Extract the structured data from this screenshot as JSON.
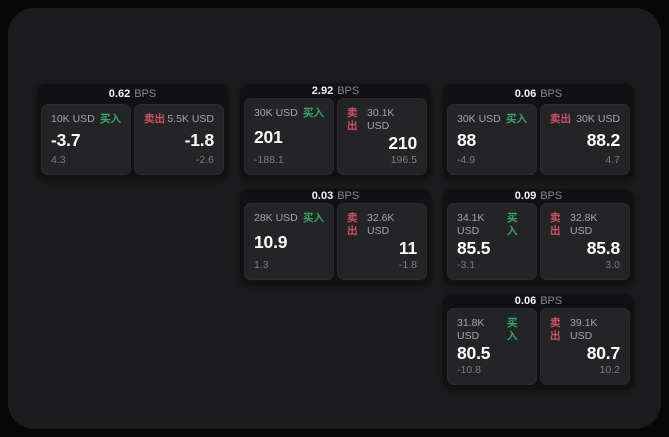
{
  "labels": {
    "bps_unit": "BPS",
    "buy": "买入",
    "sell": "卖出"
  },
  "colors": {
    "buy": "#3aa56b",
    "sell": "#cc5165",
    "page_background": "#070708",
    "container_background": "#1b1b1d",
    "card_background": "#111113",
    "panel_background": "#242427",
    "primary_text": "#fafafb",
    "secondary_text": "#a4a4a9",
    "muted_text": "#7b7b81"
  },
  "cards": [
    {
      "bps": "0.62",
      "buy": {
        "amount": "10K USD",
        "value": "-3.7",
        "delta": "4.3"
      },
      "sell": {
        "amount": "5.5K USD",
        "value": "-1.8",
        "delta": "-2.6"
      }
    },
    {
      "bps": "2.92",
      "buy": {
        "amount": "30K USD",
        "value": "201",
        "delta": "-188.1"
      },
      "sell": {
        "amount": "30.1K USD",
        "value": "210",
        "delta": "196.5"
      }
    },
    {
      "bps": "0.06",
      "buy": {
        "amount": "30K USD",
        "value": "88",
        "delta": "-4.9"
      },
      "sell": {
        "amount": "30K USD",
        "value": "88.2",
        "delta": "4.7"
      }
    },
    {
      "bps": "0.03",
      "buy": {
        "amount": "28K USD",
        "value": "10.9",
        "delta": "1.3"
      },
      "sell": {
        "amount": "32.6K USD",
        "value": "11",
        "delta": "-1.8"
      }
    },
    {
      "bps": "0.09",
      "buy": {
        "amount": "34.1K USD",
        "value": "85.5",
        "delta": "-3.1"
      },
      "sell": {
        "amount": "32.8K USD",
        "value": "85.8",
        "delta": "3.0"
      }
    },
    {
      "bps": "0.06",
      "buy": {
        "amount": "31.8K USD",
        "value": "80.5",
        "delta": "-10.8"
      },
      "sell": {
        "amount": "39.1K USD",
        "value": "80.7",
        "delta": "10.2"
      }
    }
  ]
}
